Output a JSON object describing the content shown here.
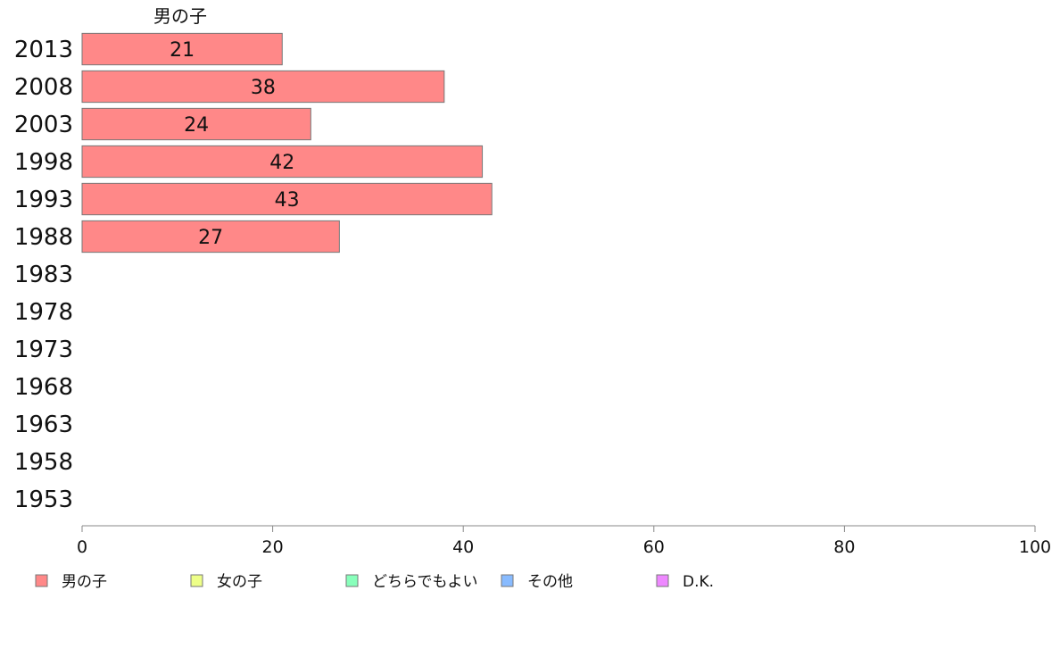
{
  "chart_data": {
    "type": "bar",
    "orientation": "horizontal",
    "column_title": "男の子",
    "categories": [
      "2013",
      "2008",
      "2003",
      "1998",
      "1993",
      "1988",
      "1983",
      "1978",
      "1973",
      "1968",
      "1963",
      "1958",
      "1953"
    ],
    "series": [
      {
        "name": "男の子",
        "color": "#ff8888",
        "values": [
          21,
          38,
          24,
          42,
          43,
          27,
          null,
          null,
          null,
          null,
          null,
          null,
          null
        ]
      }
    ],
    "legend": [
      {
        "name": "男の子",
        "color": "#ff8888"
      },
      {
        "name": "女の子",
        "color": "#eeff88"
      },
      {
        "name": "どちらでもよい",
        "color": "#88ffbb"
      },
      {
        "name": "その他",
        "color": "#88bbff"
      },
      {
        "name": "D.K.",
        "color": "#ee88ff"
      }
    ],
    "legend_position": "bottom",
    "x_ticks": [
      0,
      20,
      40,
      60,
      80,
      100
    ],
    "xlim": [
      0,
      100
    ],
    "grid": false,
    "colors": {
      "bar_stroke": "#777777",
      "axis": "#888888"
    }
  }
}
